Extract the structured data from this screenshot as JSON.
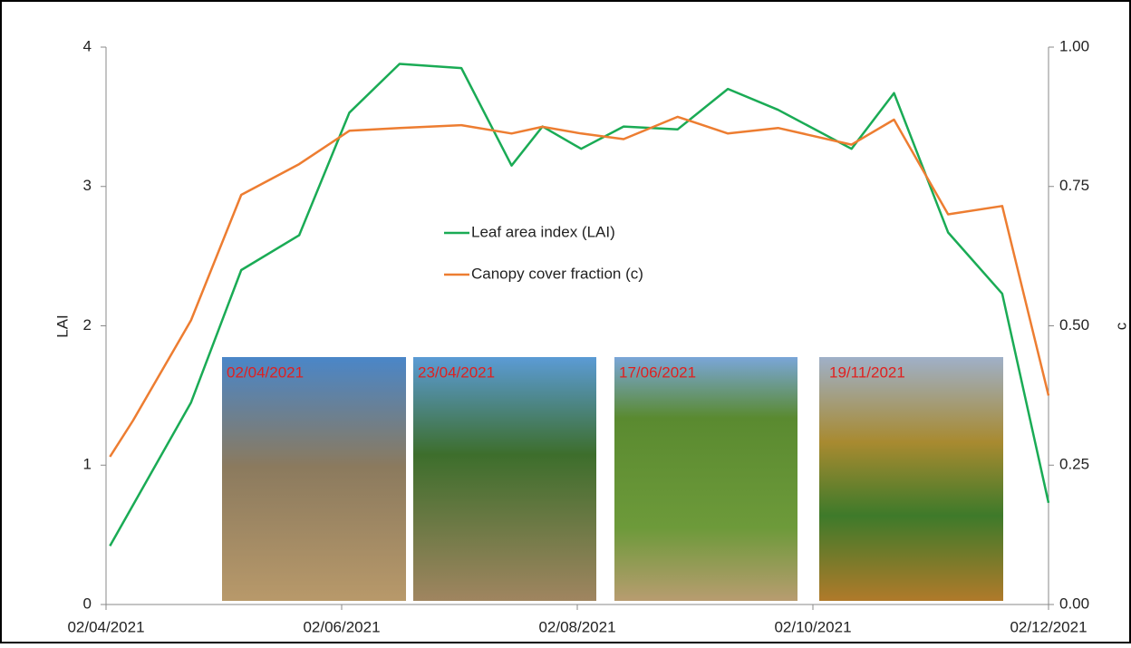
{
  "chart_data": {
    "type": "line",
    "y_label": "LAI",
    "y2_label": "c",
    "xlim": [
      "2021-04-02",
      "2021-12-02"
    ],
    "xticks": [
      {
        "value": "2021-04-02",
        "label": "02/04/2021"
      },
      {
        "value": "2021-06-02",
        "label": "02/06/2021"
      },
      {
        "value": "2021-08-02",
        "label": "02/08/2021"
      },
      {
        "value": "2021-10-02",
        "label": "02/10/2021"
      },
      {
        "value": "2021-12-02",
        "label": "02/12/2021"
      }
    ],
    "ylim": [
      0,
      4
    ],
    "yticks": [
      0,
      1,
      2,
      3,
      4
    ],
    "y2lim": [
      0,
      1
    ],
    "y2ticks": [
      {
        "value": 0,
        "label": "0.00"
      },
      {
        "value": 0.25,
        "label": "0.25"
      },
      {
        "value": 0.5,
        "label": "0.50"
      },
      {
        "value": 0.75,
        "label": "0.75"
      },
      {
        "value": 1,
        "label": "1.00"
      }
    ],
    "legend": "center",
    "series": [
      {
        "name": "Leaf area index (LAI)",
        "color": "#1aab55",
        "x": [
          "2021-04-03",
          "2021-04-24",
          "2021-05-07",
          "2021-05-22",
          "2021-06-04",
          "2021-06-17",
          "2021-07-03",
          "2021-07-16",
          "2021-07-24",
          "2021-08-03",
          "2021-08-14",
          "2021-08-28",
          "2021-09-10",
          "2021-09-23",
          "2021-10-12",
          "2021-10-23",
          "2021-11-06",
          "2021-11-20",
          "2021-12-02"
        ],
        "values": [
          0.42,
          1.45,
          2.4,
          2.65,
          3.53,
          3.88,
          3.85,
          3.15,
          3.43,
          3.27,
          3.43,
          3.41,
          3.7,
          3.55,
          3.27,
          3.67,
          2.67,
          2.23,
          0.73
        ]
      },
      {
        "name": "Canopy cover fraction (c)",
        "color": "#ed7d31",
        "axis": "y2",
        "x": [
          "2021-04-03",
          "2021-04-09",
          "2021-04-24",
          "2021-05-07",
          "2021-05-22",
          "2021-06-04",
          "2021-06-17",
          "2021-07-03",
          "2021-07-16",
          "2021-07-24",
          "2021-08-03",
          "2021-08-14",
          "2021-08-28",
          "2021-09-10",
          "2021-09-23",
          "2021-10-12",
          "2021-10-23",
          "2021-11-06",
          "2021-11-20",
          "2021-12-02"
        ],
        "values": [
          0.265,
          0.33,
          0.51,
          0.735,
          0.79,
          0.85,
          0.855,
          0.86,
          0.845,
          0.857,
          0.845,
          0.835,
          0.875,
          0.845,
          0.855,
          0.825,
          0.87,
          0.7,
          0.715,
          0.375
        ]
      }
    ]
  },
  "photo_labels": [
    "02/04/2021",
    "23/04/2021",
    "17/06/2021",
    "19/11/2021"
  ]
}
